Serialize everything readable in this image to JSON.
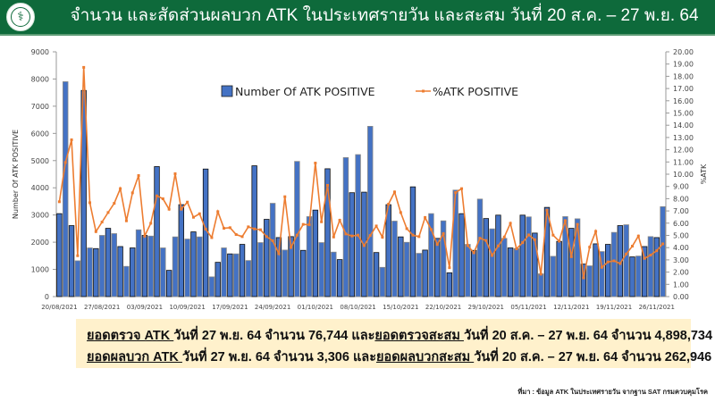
{
  "header": {
    "title": "จำนวน และสัดส่วนผลบวก ATK ในประเทศรายวัน และสะสม วันที่ 20 ส.ค. – 27 พ.ย. 64",
    "logo_icon": "department-of-disease-control-logo"
  },
  "chart_data": {
    "type": "bar+line",
    "x": [
      "20/08",
      "21/08",
      "22/08",
      "23/08",
      "24/08",
      "25/08",
      "26/08",
      "27/08",
      "28/08",
      "29/08",
      "30/08",
      "31/08",
      "01/09",
      "02/09",
      "03/09",
      "04/09",
      "05/09",
      "06/09",
      "07/09",
      "08/09",
      "09/09",
      "10/09",
      "11/09",
      "12/09",
      "13/09",
      "14/09",
      "15/09",
      "16/09",
      "17/09",
      "18/09",
      "19/09",
      "20/09",
      "21/09",
      "22/09",
      "23/09",
      "24/09",
      "25/09",
      "26/09",
      "27/09",
      "28/09",
      "29/09",
      "30/09",
      "01/10",
      "02/10",
      "03/10",
      "04/10",
      "05/10",
      "06/10",
      "07/10",
      "08/10",
      "09/10",
      "10/10",
      "11/10",
      "12/10",
      "13/10",
      "14/10",
      "15/10",
      "16/10",
      "17/10",
      "18/10",
      "19/10",
      "20/10",
      "21/10",
      "22/10",
      "23/10",
      "24/10",
      "25/10",
      "26/10",
      "27/10",
      "28/10",
      "29/10",
      "30/10",
      "31/10",
      "01/11",
      "02/11",
      "03/11",
      "04/11",
      "05/11",
      "06/11",
      "07/11",
      "08/11",
      "09/11",
      "10/11",
      "11/11",
      "12/11",
      "13/11",
      "14/11",
      "15/11",
      "16/11",
      "17/11",
      "18/11",
      "19/11",
      "20/11",
      "21/11",
      "22/11",
      "23/11",
      "24/11",
      "25/11",
      "26/11",
      "27/11"
    ],
    "x_tick_labels": [
      "20/08/2021",
      "27/08/2021",
      "03/09/2021",
      "10/09/2021",
      "17/09/2021",
      "24/09/2021",
      "01/10/2021",
      "08/10/2021",
      "15/10/2021",
      "22/10/2021",
      "29/10/2021",
      "05/11/2021",
      "12/11/2021",
      "19/11/2021",
      "26/11/2021"
    ],
    "series": [
      {
        "name": "Number Of ATK POSITIVE",
        "type": "bar",
        "axis": "left",
        "color": "#4472c4",
        "values": [
          3050,
          7900,
          2610,
          1315,
          7580,
          1790,
          1765,
          2250,
          2510,
          2315,
          1840,
          1110,
          1790,
          2455,
          2250,
          2225,
          4780,
          1790,
          965,
          2195,
          3380,
          2115,
          2380,
          2195,
          4690,
          725,
          1260,
          1790,
          1570,
          1570,
          1920,
          1325,
          4810,
          1985,
          2840,
          3430,
          2170,
          1710,
          2205,
          4970,
          1700,
          2940,
          3180,
          1985,
          4700,
          1635,
          1360,
          5110,
          3820,
          5220,
          3840,
          6260,
          1620,
          1075,
          3380,
          2775,
          2195,
          1995,
          4035,
          1590,
          1710,
          3050,
          2140,
          2785,
          875,
          3915,
          3050,
          1920,
          1700,
          3585,
          2870,
          2490,
          2995,
          2140,
          1790,
          1765,
          2995,
          2930,
          2335,
          835,
          3280,
          1480,
          2030,
          2940,
          2510,
          2860,
          1195,
          1130,
          1940,
          1655,
          1920,
          2360,
          2610,
          2640,
          1460,
          1490,
          1840,
          2205,
          2170,
          3306
        ]
      },
      {
        "name": "%ATK POSITIVE",
        "type": "line",
        "axis": "right",
        "color": "#ed7d31",
        "values": [
          7.75,
          10.96,
          12.81,
          3.34,
          18.73,
          7.67,
          5.31,
          6.09,
          6.87,
          7.62,
          8.82,
          6.19,
          8.48,
          9.89,
          4.95,
          5.99,
          8.23,
          7.99,
          7.14,
          10.04,
          7.14,
          7.72,
          6.48,
          6.77,
          5.51,
          4.82,
          6.94,
          5.58,
          5.63,
          5.07,
          4.9,
          5.7,
          5.53,
          5.46,
          4.9,
          4.56,
          3.51,
          8.16,
          4.02,
          5.02,
          5.9,
          5.87,
          10.91,
          6.11,
          9.09,
          4.87,
          6.24,
          5.12,
          4.95,
          5.02,
          4.17,
          4.99,
          5.77,
          4.85,
          7.55,
          8.55,
          6.87,
          5.55,
          5.02,
          4.9,
          6.46,
          5.48,
          4.26,
          5.14,
          2.36,
          8.5,
          8.82,
          4.17,
          3.58,
          4.77,
          4.58,
          3.36,
          4.14,
          4.87,
          5.99,
          3.9,
          4.41,
          5.04,
          4.65,
          1.83,
          7.06,
          5.02,
          4.53,
          6.21,
          3.26,
          5.9,
          1.53,
          4.04,
          5.33,
          2.39,
          2.83,
          2.92,
          2.7,
          3.48,
          4.12,
          4.95,
          3.12,
          3.39,
          3.75,
          4.31
        ]
      }
    ],
    "ylabel": "Number Of ATK POSITIVE",
    "ylabel_right": "%ATK",
    "ylim": [
      0,
      9000
    ],
    "yticks": [
      "0",
      "1000",
      "2000",
      "3000",
      "4000",
      "5000",
      "6000",
      "7000",
      "8000",
      "9000"
    ],
    "ylim_right": [
      0,
      20
    ],
    "yticks_right": [
      "0.00",
      "1.00",
      "2.00",
      "3.00",
      "4.00",
      "5.00",
      "6.00",
      "7.00",
      "8.00",
      "9.00",
      "10.00",
      "11.00",
      "12.00",
      "13.00",
      "14.00",
      "15.00",
      "16.00",
      "17.00",
      "18.00",
      "19.00",
      "20.00"
    ],
    "grid": false,
    "legend_position": "top-center"
  },
  "summary": {
    "line1": {
      "label": "ยอดตรวจ ATK ",
      "text1": "วันที่ 27 พ.ย. 64 จำนวน 76,744 และ",
      "label2": "ยอดตรวจสะสม ",
      "text2": "วันที่ 20 ส.ค. – 27 พ.ย. 64 จำนวน 4,898,734"
    },
    "line2": {
      "label": "ยอดผลบวก ATK ",
      "text1": "วันที่ 27 พ.ย. 64 จำนวน 3,306 และ",
      "label2": "ยอดผลบวกสะสม ",
      "text2": "วันที่ 20 ส.ค. – 27 พ.ย. 64 จำนวน 262,946"
    }
  },
  "source": "ที่มา : ข้อมูล ATK ในประเทศรายวัน จากฐาน SAT กรมควบคุมโรค"
}
